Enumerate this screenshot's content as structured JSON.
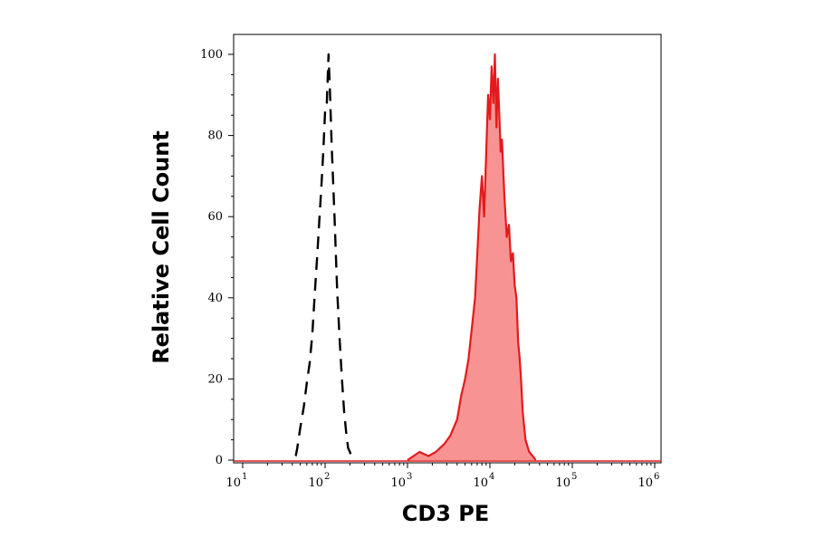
{
  "chart_data": {
    "type": "area",
    "title": "",
    "xlabel": "CD3 PE",
    "ylabel": "Relative Cell Count",
    "x_scale": "log",
    "xlim": [
      10,
      1000000
    ],
    "ylim": [
      0,
      100
    ],
    "grid": false,
    "x_ticks": [
      {
        "value": 10,
        "base": "10",
        "exp": "1"
      },
      {
        "value": 100,
        "base": "10",
        "exp": "2"
      },
      {
        "value": 1000,
        "base": "10",
        "exp": "3"
      },
      {
        "value": 10000,
        "base": "10",
        "exp": "4"
      },
      {
        "value": 100000,
        "base": "10",
        "exp": "5"
      },
      {
        "value": 1000000,
        "base": "10",
        "exp": "6"
      }
    ],
    "y_ticks": [
      0,
      20,
      40,
      60,
      80,
      100
    ],
    "y_tick_labels": [
      "0",
      "20",
      "40",
      "60",
      "80",
      "100"
    ],
    "series": [
      {
        "style": "dashed-line",
        "color": "#000000",
        "x": [
          44,
          46,
          50,
          55,
          60,
          65,
          70,
          75,
          80,
          85,
          90,
          95,
          100,
          105,
          110,
          115,
          120,
          130,
          140,
          150,
          160,
          170,
          180,
          190,
          200,
          215
        ],
        "y": [
          1,
          3,
          8,
          13,
          19,
          24,
          31,
          41,
          50,
          59,
          67,
          76,
          86,
          88,
          100,
          90,
          78,
          60,
          42,
          30,
          20,
          12,
          7,
          3,
          2,
          0
        ]
      },
      {
        "style": "filled",
        "color": "#e31a1c",
        "fill": "#f79393",
        "x": [
          1000,
          1400,
          1800,
          2200,
          2800,
          3300,
          4000,
          4500,
          5000,
          5500,
          6000,
          6600,
          7000,
          7500,
          8000,
          8500,
          9000,
          9500,
          10000,
          10500,
          11000,
          11500,
          12000,
          12500,
          13000,
          13500,
          14000,
          15000,
          16000,
          17000,
          18000,
          19000,
          20000,
          21000,
          22000,
          23000,
          24000,
          25000,
          27000,
          30000,
          33000,
          36000
        ],
        "y": [
          0,
          2,
          1,
          2,
          4,
          6,
          10,
          16,
          20,
          25,
          32,
          40,
          50,
          62,
          70,
          60,
          75,
          90,
          84,
          97,
          88,
          100,
          82,
          94,
          85,
          76,
          79,
          65,
          55,
          58,
          49,
          51,
          43,
          40,
          29,
          25,
          19,
          12,
          5,
          2,
          1,
          0
        ]
      }
    ]
  }
}
